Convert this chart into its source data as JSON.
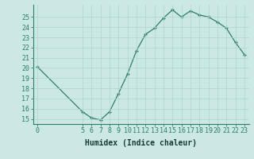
{
  "x_values": [
    0,
    5,
    6,
    7,
    8,
    9,
    10,
    11,
    12,
    13,
    14,
    15,
    16,
    17,
    18,
    19,
    20,
    21,
    22,
    23
  ],
  "y_values": [
    20.1,
    15.7,
    15.1,
    14.9,
    15.7,
    17.5,
    19.4,
    21.7,
    23.3,
    23.9,
    24.9,
    25.7,
    25.0,
    25.6,
    25.2,
    25.0,
    24.5,
    23.9,
    22.5,
    21.3
  ],
  "line_color": "#2d7d6e",
  "marker": "+",
  "bg_color": "#cce8e4",
  "grid_color": "#aed4ce",
  "axis_color": "#2d7d6e",
  "xlabel": "Humidex (Indice chaleur)",
  "ylim": [
    14.5,
    26.2
  ],
  "xlim": [
    -0.5,
    23.5
  ],
  "yticks": [
    15,
    16,
    17,
    18,
    19,
    20,
    21,
    22,
    23,
    24,
    25
  ],
  "xticks": [
    0,
    5,
    6,
    7,
    8,
    9,
    10,
    11,
    12,
    13,
    14,
    15,
    16,
    17,
    18,
    19,
    20,
    21,
    22,
    23
  ],
  "font_color": "#1a3a36",
  "label_fontsize": 6.0,
  "xlabel_fontsize": 7.0
}
